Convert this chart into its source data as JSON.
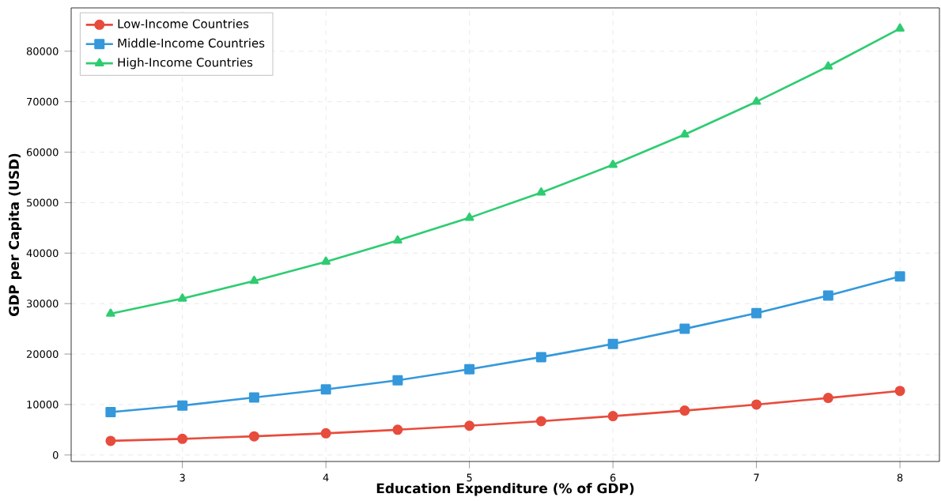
{
  "chart_data": {
    "type": "line",
    "xlabel": "Education Expenditure (% of GDP)",
    "ylabel": "GDP per Capita (USD)",
    "x": [
      2.5,
      3,
      3.5,
      4,
      4.5,
      5,
      5.5,
      6,
      6.5,
      7,
      7.5,
      8
    ],
    "series": [
      {
        "name": "Low-Income Countries",
        "color": "#e74c3c",
        "marker": "circle",
        "values": [
          2800,
          3200,
          3700,
          4300,
          5000,
          5800,
          6700,
          7700,
          8800,
          10000,
          11300,
          12700
        ]
      },
      {
        "name": "Middle-Income Countries",
        "color": "#3498db",
        "marker": "square",
        "values": [
          8500,
          9800,
          11400,
          13000,
          14800,
          17000,
          19400,
          22000,
          25000,
          28100,
          31600,
          35400
        ]
      },
      {
        "name": "High-Income Countries",
        "color": "#2ecc71",
        "marker": "triangle",
        "values": [
          28000,
          31000,
          34500,
          38300,
          42500,
          47000,
          52000,
          57500,
          63500,
          70000,
          77000,
          84500
        ]
      }
    ],
    "xlim": [
      2.225,
      8.275
    ],
    "ylim": [
      -1285,
      88585
    ],
    "xticks": [
      3,
      4,
      5,
      6,
      7,
      8
    ],
    "yticks": [
      0,
      10000,
      20000,
      30000,
      40000,
      50000,
      60000,
      70000,
      80000
    ],
    "grid": true,
    "legend": "top left",
    "line_style": "solid"
  }
}
